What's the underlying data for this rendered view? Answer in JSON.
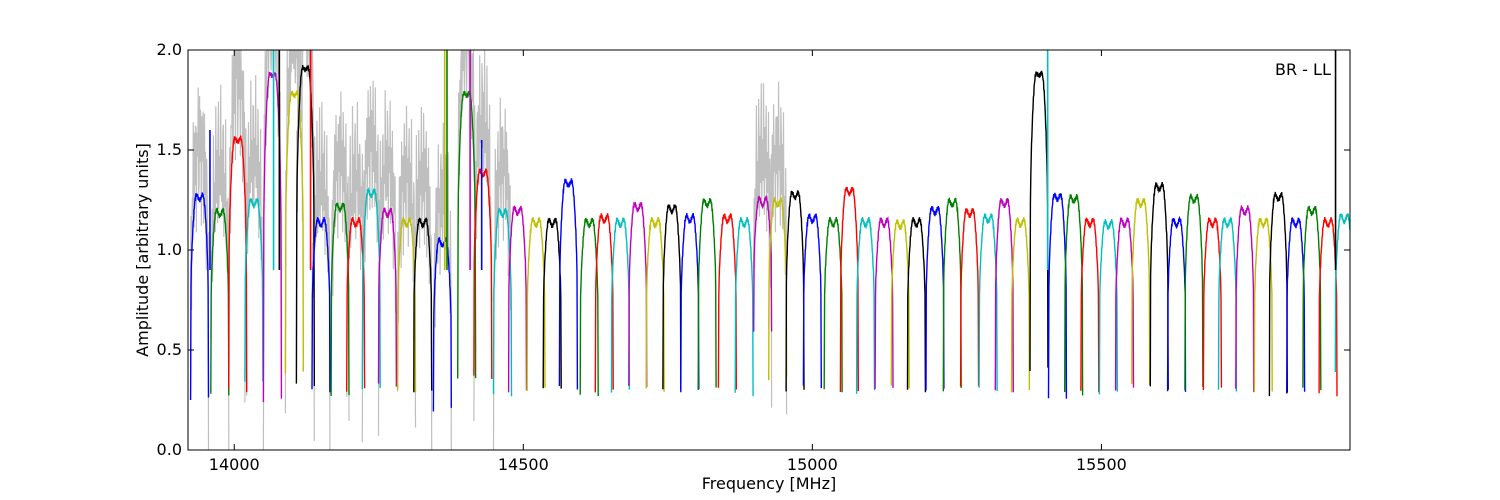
{
  "chart_data": {
    "type": "line",
    "title": "",
    "xlabel": "Frequency [MHz]",
    "ylabel": "Amplitude [arbitrary units]",
    "xlim": [
      13920,
      15930
    ],
    "ylim": [
      0.0,
      2.0
    ],
    "x_ticks": [
      14000,
      14500,
      15000,
      15500
    ],
    "y_ticks": [
      0.0,
      0.5,
      1.0,
      1.5,
      2.0
    ],
    "annotation": "BR - LL",
    "grid": false,
    "legend": "none",
    "color_cycle": [
      "#0000ff",
      "#008000",
      "#ff0000",
      "#00bfbf",
      "#bf00bf",
      "#bfbf00",
      "#000000"
    ],
    "background_series_color": "#bfbfbf",
    "band_width_mhz": 31,
    "band_centers": [
      13940,
      13975,
      14006,
      14034,
      14066,
      14104,
      14123,
      14150,
      14183,
      14210,
      14237,
      14265,
      14298,
      14326,
      14360,
      14402,
      14430,
      14464,
      14490,
      14522,
      14550,
      14578,
      14614,
      14640,
      14668,
      14698,
      14728,
      14757,
      14788,
      14818,
      14853,
      14882,
      14914,
      14940,
      14970,
      15000,
      15036,
      15064,
      15092,
      15124,
      15152,
      15180,
      15212,
      15242,
      15272,
      15304,
      15332,
      15360,
      15392,
      15424,
      15452,
      15480,
      15512,
      15540,
      15568,
      15600,
      15630,
      15660,
      15692,
      15718,
      15748,
      15780,
      15806,
      15836,
      15864,
      15892,
      15920
    ],
    "band_peaks": [
      1.33,
      1.25,
      1.62,
      1.3,
      1.95,
      1.85,
      1.98,
      1.2,
      1.28,
      1.2,
      1.35,
      1.25,
      1.2,
      1.2,
      1.1,
      1.85,
      1.45,
      1.25,
      1.26,
      1.2,
      1.2,
      1.4,
      1.2,
      1.22,
      1.2,
      1.28,
      1.2,
      1.27,
      1.22,
      1.3,
      1.22,
      1.2,
      1.3,
      1.3,
      1.34,
      1.22,
      1.2,
      1.36,
      1.2,
      1.2,
      1.19,
      1.2,
      1.26,
      1.3,
      1.25,
      1.22,
      1.3,
      1.2,
      1.95,
      1.33,
      1.32,
      1.2,
      1.19,
      1.2,
      1.3,
      1.38,
      1.2,
      1.32,
      1.2,
      1.2,
      1.26,
      1.2,
      1.33,
      1.2,
      1.26,
      1.2,
      1.22
    ],
    "band_troughs": [
      0.25,
      0.27,
      0.3,
      0.35,
      0.25,
      0.38,
      0.32,
      0.3,
      0.28,
      0.3,
      0.3,
      0.32,
      0.3,
      0.3,
      0.2,
      0.35,
      0.36,
      0.28,
      0.3,
      0.3,
      0.3,
      0.31,
      0.28,
      0.3,
      0.29,
      0.31,
      0.3,
      0.31,
      0.3,
      0.3,
      0.3,
      0.28,
      0.6,
      0.36,
      0.29,
      0.31,
      0.3,
      0.3,
      0.29,
      0.3,
      0.31,
      0.3,
      0.31,
      0.3,
      0.31,
      0.3,
      0.3,
      0.3,
      0.4,
      0.25,
      0.28,
      0.3,
      0.29,
      0.3,
      0.32,
      0.31,
      0.3,
      0.31,
      0.3,
      0.29,
      0.3,
      0.3,
      0.28,
      0.28,
      0.3,
      0.28,
      0.4
    ],
    "spikes": [
      {
        "x": 13958,
        "y": 1.6
      },
      {
        "x": 14068,
        "y": 2.0
      },
      {
        "x": 14078,
        "y": 2.0
      },
      {
        "x": 14132,
        "y": 2.0
      },
      {
        "x": 14364,
        "y": 2.0
      },
      {
        "x": 14368,
        "y": 2.0
      },
      {
        "x": 14408,
        "y": 2.0
      },
      {
        "x": 14428,
        "y": 1.55
      },
      {
        "x": 15407,
        "y": 2.0
      },
      {
        "x": 15905,
        "y": 2.0
      }
    ]
  }
}
